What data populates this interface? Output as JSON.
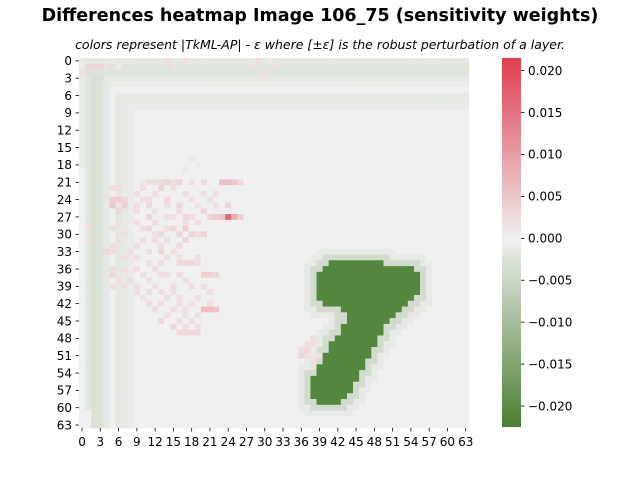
{
  "chart_data": {
    "type": "heatmap",
    "title": "Differences heatmap Image 106_75 (sensitivity weights)",
    "subtitle": "colors represent |TkML-AP| - ε where [±ε] is the robust perturbation of a layer.",
    "rows": 64,
    "cols": 64,
    "x_ticks": [
      "0",
      "3",
      "6",
      "9",
      "12",
      "15",
      "18",
      "21",
      "24",
      "27",
      "30",
      "33",
      "36",
      "39",
      "42",
      "45",
      "48",
      "51",
      "54",
      "57",
      "60",
      "63"
    ],
    "y_ticks": [
      "0",
      "3",
      "6",
      "9",
      "12",
      "15",
      "18",
      "21",
      "24",
      "27",
      "30",
      "33",
      "36",
      "39",
      "42",
      "45",
      "48",
      "51",
      "54",
      "57",
      "60",
      "63"
    ],
    "colorbar": {
      "vmin": -0.0225,
      "vmax": 0.0215,
      "ticks": [
        "0.020",
        "0.015",
        "0.010",
        "0.005",
        "0.000",
        "−0.005",
        "−0.010",
        "−0.015",
        "−0.020"
      ],
      "tick_values": [
        0.02,
        0.015,
        0.01,
        0.005,
        0.0,
        -0.005,
        -0.01,
        -0.015,
        -0.02
      ],
      "color_negative": "#4a7f31",
      "color_zero": "#f0f0f0",
      "color_positive": "#e03c4f"
    },
    "background_value": 0.0,
    "regions": [
      {
        "name": "top band row 0",
        "rows": [
          0,
          0
        ],
        "cols": [
          1,
          63
        ],
        "value": -0.0015
      },
      {
        "name": "top band rows 1-2",
        "rows": [
          1,
          2
        ],
        "cols": [
          1,
          63
        ],
        "value": -0.0025
      },
      {
        "name": "top band row 3",
        "rows": [
          3,
          3
        ],
        "cols": [
          1,
          63
        ],
        "value": -0.0015
      },
      {
        "name": "band row 4",
        "rows": [
          4,
          4
        ],
        "cols": [
          4,
          63
        ],
        "value": -0.001
      },
      {
        "name": "band row 6",
        "rows": [
          6,
          6
        ],
        "cols": [
          7,
          63
        ],
        "value": -0.0015
      },
      {
        "name": "band row 7",
        "rows": [
          7,
          7
        ],
        "cols": [
          8,
          63
        ],
        "value": -0.0012
      },
      {
        "name": "band row 8",
        "rows": [
          8,
          8
        ],
        "cols": [
          9,
          63
        ],
        "value": -0.0008
      },
      {
        "name": "left band col 0",
        "rows": [
          0,
          18
        ],
        "cols": [
          0,
          0
        ],
        "value": -0.001
      },
      {
        "name": "left band col 1",
        "rows": [
          3,
          60
        ],
        "cols": [
          1,
          1
        ],
        "value": -0.002
      },
      {
        "name": "left band cols 2-3",
        "rows": [
          3,
          63
        ],
        "cols": [
          2,
          3
        ],
        "value": -0.003
      },
      {
        "name": "left band col 4",
        "rows": [
          4,
          63
        ],
        "cols": [
          4,
          4
        ],
        "value": -0.0015
      },
      {
        "name": "left band col 6",
        "rows": [
          6,
          63
        ],
        "cols": [
          6,
          6
        ],
        "value": -0.0015
      },
      {
        "name": "left band col 7",
        "rows": [
          7,
          63
        ],
        "cols": [
          7,
          7
        ],
        "value": -0.0012
      },
      {
        "name": "left band col 8",
        "rows": [
          8,
          63
        ],
        "cols": [
          8,
          8
        ],
        "value": -0.0008
      },
      {
        "name": "digit halo outer",
        "rows": [
          33,
          61
        ],
        "cols": [
          36,
          57
        ],
        "value": -0.0012,
        "mask": "halo2"
      },
      {
        "name": "digit halo inner",
        "rows": [
          34,
          60
        ],
        "cols": [
          37,
          56
        ],
        "value": -0.004,
        "mask": "halo1"
      },
      {
        "name": "digit seven",
        "rows": [
          35,
          59
        ],
        "cols": [
          38,
          55
        ],
        "value": -0.021,
        "mask": "digit"
      }
    ],
    "positive_cells": [
      [
        1,
        1,
        0.003
      ],
      [
        1,
        2,
        0.003
      ],
      [
        1,
        3,
        0.003
      ],
      [
        2,
        0,
        0.002
      ],
      [
        1,
        4,
        0.002
      ],
      [
        0,
        5,
        0.001
      ],
      [
        1,
        6,
        0.001
      ],
      [
        0,
        14,
        0.002
      ],
      [
        0,
        17,
        0.002
      ],
      [
        1,
        15,
        0.002
      ],
      [
        0,
        29,
        0.002
      ],
      [
        0,
        31,
        0.001
      ],
      [
        1,
        28,
        0.002
      ],
      [
        1,
        32,
        0.002
      ],
      [
        2,
        30,
        0.002
      ],
      [
        17,
        18,
        0.001
      ],
      [
        18,
        19,
        0.001
      ],
      [
        19,
        17,
        0.001
      ],
      [
        21,
        10,
        0.001
      ],
      [
        21,
        11,
        0.002
      ],
      [
        21,
        12,
        0.002
      ],
      [
        21,
        13,
        0.0025
      ],
      [
        21,
        14,
        0.003
      ],
      [
        21,
        15,
        0.002
      ],
      [
        21,
        16,
        0.003
      ],
      [
        21,
        18,
        0.002
      ],
      [
        21,
        20,
        0.0025
      ],
      [
        21,
        23,
        0.006
      ],
      [
        21,
        24,
        0.006
      ],
      [
        21,
        25,
        0.005
      ],
      [
        21,
        26,
        0.003
      ],
      [
        22,
        5,
        0.002
      ],
      [
        22,
        6,
        0.002
      ],
      [
        22,
        7,
        0.001
      ],
      [
        22,
        10,
        0.002
      ],
      [
        22,
        13,
        0.003
      ],
      [
        22,
        15,
        0.002
      ],
      [
        23,
        6,
        0.002
      ],
      [
        23,
        9,
        0.002
      ],
      [
        23,
        12,
        0.002
      ],
      [
        23,
        17,
        0.002
      ],
      [
        23,
        20,
        0.002
      ],
      [
        23,
        22,
        0.002
      ],
      [
        24,
        5,
        0.004
      ],
      [
        24,
        6,
        0.004
      ],
      [
        24,
        7,
        0.003
      ],
      [
        24,
        10,
        0.002
      ],
      [
        24,
        11,
        0.002
      ],
      [
        24,
        14,
        0.003
      ],
      [
        24,
        18,
        0.002
      ],
      [
        24,
        21,
        0.002
      ],
      [
        25,
        5,
        0.005
      ],
      [
        25,
        7,
        0.004
      ],
      [
        25,
        9,
        0.002
      ],
      [
        25,
        11,
        0.003
      ],
      [
        25,
        14,
        0.002
      ],
      [
        25,
        16,
        0.003
      ],
      [
        25,
        19,
        0.002
      ],
      [
        25,
        22,
        0.002
      ],
      [
        25,
        24,
        0.003
      ],
      [
        26,
        6,
        0.003
      ],
      [
        26,
        9,
        0.002
      ],
      [
        26,
        12,
        0.002
      ],
      [
        26,
        16,
        0.002
      ],
      [
        26,
        20,
        0.003
      ],
      [
        27,
        11,
        0.003
      ],
      [
        27,
        14,
        0.002
      ],
      [
        27,
        15,
        0.002
      ],
      [
        27,
        17,
        0.003
      ],
      [
        27,
        18,
        0.002
      ],
      [
        27,
        21,
        0.003
      ],
      [
        27,
        22,
        0.004
      ],
      [
        27,
        23,
        0.005
      ],
      [
        27,
        24,
        0.016
      ],
      [
        27,
        25,
        0.008
      ],
      [
        27,
        26,
        0.004
      ],
      [
        28,
        6,
        0.002
      ],
      [
        28,
        9,
        0.002
      ],
      [
        28,
        12,
        0.002
      ],
      [
        28,
        17,
        0.002
      ],
      [
        28,
        19,
        0.002
      ],
      [
        29,
        1,
        0.002
      ],
      [
        29,
        5,
        0.002
      ],
      [
        29,
        10,
        0.002
      ],
      [
        29,
        11,
        0.003
      ],
      [
        29,
        14,
        0.002
      ],
      [
        29,
        15,
        0.003
      ],
      [
        29,
        17,
        0.004
      ],
      [
        30,
        7,
        0.002
      ],
      [
        30,
        12,
        0.002
      ],
      [
        30,
        13,
        0.003
      ],
      [
        30,
        16,
        0.003
      ],
      [
        30,
        18,
        0.003
      ],
      [
        30,
        19,
        0.002
      ],
      [
        30,
        20,
        0.003
      ],
      [
        31,
        1,
        0.002
      ],
      [
        31,
        6,
        0.002
      ],
      [
        31,
        10,
        0.002
      ],
      [
        31,
        12,
        0.002
      ],
      [
        31,
        14,
        0.002
      ],
      [
        31,
        17,
        0.003
      ],
      [
        32,
        5,
        0.002
      ],
      [
        32,
        9,
        0.002
      ],
      [
        32,
        13,
        0.002
      ],
      [
        32,
        16,
        0.002
      ],
      [
        33,
        4,
        0.003
      ],
      [
        33,
        5,
        0.002
      ],
      [
        33,
        8,
        0.002
      ],
      [
        33,
        11,
        0.002
      ],
      [
        33,
        13,
        0.003
      ],
      [
        33,
        15,
        0.002
      ],
      [
        34,
        7,
        0.002
      ],
      [
        34,
        9,
        0.002
      ],
      [
        34,
        14,
        0.002
      ],
      [
        34,
        16,
        0.002
      ],
      [
        34,
        19,
        0.002
      ],
      [
        35,
        11,
        0.002
      ],
      [
        35,
        13,
        0.002
      ],
      [
        35,
        16,
        0.003
      ],
      [
        35,
        17,
        0.003
      ],
      [
        35,
        18,
        0.003
      ],
      [
        35,
        19,
        0.002
      ],
      [
        36,
        5,
        0.002
      ],
      [
        36,
        7,
        0.002
      ],
      [
        36,
        9,
        0.002
      ],
      [
        36,
        12,
        0.002
      ],
      [
        37,
        5,
        0.003
      ],
      [
        37,
        10,
        0.002
      ],
      [
        37,
        13,
        0.002
      ],
      [
        37,
        14,
        0.002
      ],
      [
        37,
        16,
        0.002
      ],
      [
        37,
        20,
        0.004
      ],
      [
        37,
        21,
        0.004
      ],
      [
        37,
        22,
        0.003
      ],
      [
        38,
        6,
        0.002
      ],
      [
        38,
        8,
        0.002
      ],
      [
        38,
        11,
        0.002
      ],
      [
        38,
        17,
        0.002
      ],
      [
        39,
        5,
        0.002
      ],
      [
        39,
        7,
        0.002
      ],
      [
        39,
        9,
        0.002
      ],
      [
        39,
        12,
        0.002
      ],
      [
        39,
        15,
        0.002
      ],
      [
        39,
        18,
        0.002
      ],
      [
        39,
        20,
        0.002
      ],
      [
        40,
        9,
        0.002
      ],
      [
        40,
        11,
        0.002
      ],
      [
        40,
        13,
        0.002
      ],
      [
        40,
        15,
        0.002
      ],
      [
        40,
        21,
        0.002
      ],
      [
        41,
        10,
        0.002
      ],
      [
        41,
        14,
        0.002
      ],
      [
        41,
        16,
        0.002
      ],
      [
        41,
        19,
        0.002
      ],
      [
        42,
        11,
        0.002
      ],
      [
        42,
        13,
        0.002
      ],
      [
        42,
        16,
        0.002
      ],
      [
        42,
        18,
        0.002
      ],
      [
        42,
        21,
        0.002
      ],
      [
        43,
        12,
        0.002
      ],
      [
        43,
        15,
        0.002
      ],
      [
        43,
        17,
        0.002
      ],
      [
        43,
        20,
        0.006
      ],
      [
        43,
        21,
        0.006
      ],
      [
        43,
        22,
        0.005
      ],
      [
        44,
        14,
        0.002
      ],
      [
        44,
        17,
        0.002
      ],
      [
        44,
        19,
        0.002
      ],
      [
        45,
        13,
        0.003
      ],
      [
        45,
        16,
        0.002
      ],
      [
        45,
        18,
        0.002
      ],
      [
        46,
        15,
        0.003
      ],
      [
        46,
        17,
        0.002
      ],
      [
        46,
        19,
        0.002
      ],
      [
        47,
        16,
        0.003
      ],
      [
        47,
        17,
        0.003
      ],
      [
        47,
        18,
        0.003
      ],
      [
        47,
        19,
        0.003
      ],
      [
        48,
        38,
        0.002
      ],
      [
        49,
        37,
        0.002
      ],
      [
        49,
        38,
        0.002
      ],
      [
        50,
        36,
        0.002
      ],
      [
        50,
        37,
        0.003
      ],
      [
        51,
        36,
        0.003
      ],
      [
        51,
        37,
        0.002
      ],
      [
        51,
        39,
        0.002
      ],
      [
        52,
        38,
        0.002
      ],
      [
        53,
        38,
        0.002
      ]
    ]
  }
}
